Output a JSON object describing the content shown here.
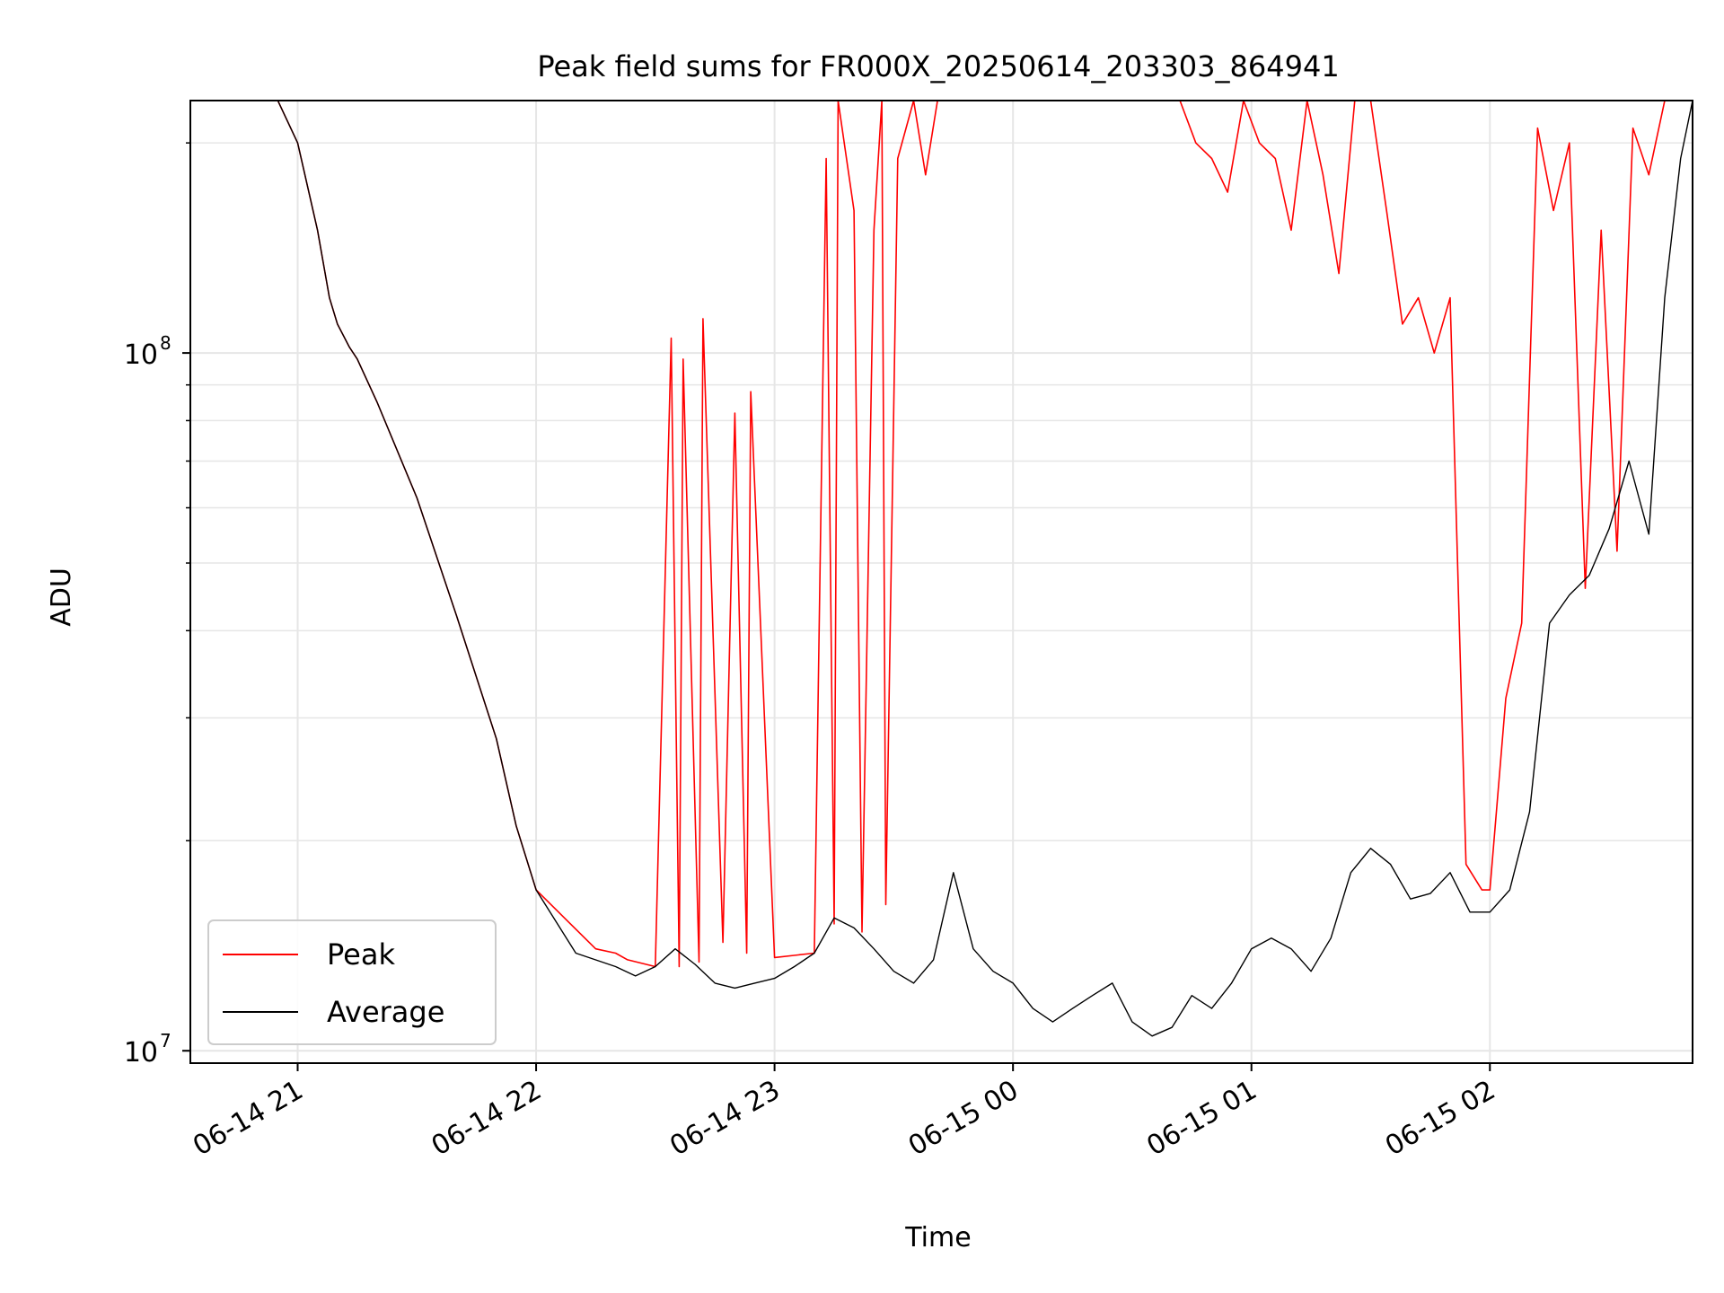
{
  "chart_data": {
    "type": "line",
    "title": "Peak field sums for FR000X_20250614_203303_864941",
    "xlabel": "Time",
    "ylabel": "ADU",
    "yscale": "log",
    "xlim": [
      "2025-06-14 20:33",
      "2025-06-15 02:51"
    ],
    "ylim": [
      9600000.0,
      230000000.0
    ],
    "grid": true,
    "legend": "lower-left",
    "x_ticks": [
      {
        "t": "2025-06-14 21:00",
        "label": "06-14 21"
      },
      {
        "t": "2025-06-14 22:00",
        "label": "06-14 22"
      },
      {
        "t": "2025-06-14 23:00",
        "label": "06-14 23"
      },
      {
        "t": "2025-06-15 00:00",
        "label": "06-15 00"
      },
      {
        "t": "2025-06-15 01:00",
        "label": "06-15 01"
      },
      {
        "t": "2025-06-15 02:00",
        "label": "06-15 02"
      }
    ],
    "y_ticks": [
      {
        "v": 10000000,
        "label": "10",
        "exp": "7"
      },
      {
        "v": 100000000,
        "label": "10",
        "exp": "8"
      }
    ],
    "y_minor_ticks": [
      20000000,
      30000000,
      40000000,
      50000000,
      60000000,
      70000000,
      80000000,
      90000000,
      200000000
    ],
    "series": [
      {
        "name": "Peak",
        "color": "#ff0000",
        "x": [
          "2025-06-14 20:33",
          "2025-06-14 20:45",
          "2025-06-14 20:55",
          "2025-06-14 21:00",
          "2025-06-14 21:05",
          "2025-06-14 21:08",
          "2025-06-14 21:10",
          "2025-06-14 21:13",
          "2025-06-14 21:15",
          "2025-06-14 21:20",
          "2025-06-14 21:30",
          "2025-06-14 21:40",
          "2025-06-14 21:50",
          "2025-06-14 21:55",
          "2025-06-14 22:00",
          "2025-06-14 22:15",
          "2025-06-14 22:20",
          "2025-06-14 22:23",
          "2025-06-14 22:30",
          "2025-06-14 22:34",
          "2025-06-14 22:36",
          "2025-06-14 22:37",
          "2025-06-14 22:41",
          "2025-06-14 22:42",
          "2025-06-14 22:47",
          "2025-06-14 22:50",
          "2025-06-14 22:53",
          "2025-06-14 22:54",
          "2025-06-14 23:00",
          "2025-06-14 23:10",
          "2025-06-14 23:13",
          "2025-06-14 23:15",
          "2025-06-14 23:16",
          "2025-06-14 23:20",
          "2025-06-14 23:22",
          "2025-06-14 23:25",
          "2025-06-14 23:27",
          "2025-06-14 23:28",
          "2025-06-14 23:31",
          "2025-06-14 23:35",
          "2025-06-14 23:38",
          "2025-06-14 23:41",
          "2025-06-14 23:45",
          "2025-06-14 23:50",
          "2025-06-14 23:54",
          "2025-06-14 23:58",
          "2025-06-15 00:02",
          "2025-06-15 00:06",
          "2025-06-15 00:10",
          "2025-06-15 00:14",
          "2025-06-15 00:18",
          "2025-06-15 00:22",
          "2025-06-15 00:26",
          "2025-06-15 00:30",
          "2025-06-15 00:34",
          "2025-06-15 00:38",
          "2025-06-15 00:42",
          "2025-06-15 00:46",
          "2025-06-15 00:50",
          "2025-06-15 00:54",
          "2025-06-15 00:58",
          "2025-06-15 01:02",
          "2025-06-15 01:06",
          "2025-06-15 01:10",
          "2025-06-15 01:14",
          "2025-06-15 01:18",
          "2025-06-15 01:22",
          "2025-06-15 01:26",
          "2025-06-15 01:30",
          "2025-06-15 01:34",
          "2025-06-15 01:38",
          "2025-06-15 01:42",
          "2025-06-15 01:46",
          "2025-06-15 01:50",
          "2025-06-15 01:54",
          "2025-06-15 01:58",
          "2025-06-15 02:00",
          "2025-06-15 02:04",
          "2025-06-15 02:08",
          "2025-06-15 02:12",
          "2025-06-15 02:16",
          "2025-06-15 02:20",
          "2025-06-15 02:24",
          "2025-06-15 02:28",
          "2025-06-15 02:32",
          "2025-06-15 02:36",
          "2025-06-15 02:40",
          "2025-06-15 02:44",
          "2025-06-15 02:47",
          "2025-06-15 02:51"
        ],
        "values": [
          230000000,
          230000000,
          230000000,
          200000000,
          150000000,
          120000000,
          110000000,
          102000000,
          98000000,
          85000000,
          62000000,
          42000000,
          28000000,
          21000000,
          17000000,
          14000000,
          13800000,
          13500000,
          13200000,
          105000000,
          13200000,
          98000000,
          13400000,
          112000000,
          14300000,
          82000000,
          13800000,
          88000000,
          13600000,
          13800000,
          190000000,
          15200000,
          230000000,
          160000000,
          14800000,
          150000000,
          230000000,
          16200000,
          190000000,
          230000000,
          180000000,
          230000000,
          230000000,
          230000000,
          230000000,
          230000000,
          230000000,
          230000000,
          230000000,
          230000000,
          230000000,
          230000000,
          230000000,
          230000000,
          230000000,
          230000000,
          230000000,
          200000000,
          190000000,
          170000000,
          230000000,
          200000000,
          190000000,
          150000000,
          230000000,
          180000000,
          130000000,
          230000000,
          230000000,
          160000000,
          110000000,
          120000000,
          100000000,
          120000000,
          18500000,
          17000000,
          17000000,
          32000000,
          41000000,
          210000000,
          160000000,
          200000000,
          46000000,
          150000000,
          52000000,
          210000000,
          180000000,
          230000000,
          230000000,
          230000000
        ]
      },
      {
        "name": "Average",
        "color": "#000000",
        "x": [
          "2025-06-14 20:33",
          "2025-06-14 20:45",
          "2025-06-14 20:55",
          "2025-06-14 21:00",
          "2025-06-14 21:05",
          "2025-06-14 21:08",
          "2025-06-14 21:10",
          "2025-06-14 21:13",
          "2025-06-14 21:15",
          "2025-06-14 21:20",
          "2025-06-14 21:30",
          "2025-06-14 21:40",
          "2025-06-14 21:50",
          "2025-06-14 21:55",
          "2025-06-14 22:00",
          "2025-06-14 22:10",
          "2025-06-14 22:20",
          "2025-06-14 22:25",
          "2025-06-14 22:30",
          "2025-06-14 22:35",
          "2025-06-14 22:40",
          "2025-06-14 22:45",
          "2025-06-14 22:50",
          "2025-06-14 22:55",
          "2025-06-14 23:00",
          "2025-06-14 23:05",
          "2025-06-14 23:10",
          "2025-06-14 23:15",
          "2025-06-14 23:20",
          "2025-06-14 23:25",
          "2025-06-14 23:30",
          "2025-06-14 23:35",
          "2025-06-14 23:40",
          "2025-06-14 23:45",
          "2025-06-14 23:50",
          "2025-06-14 23:55",
          "2025-06-15 00:00",
          "2025-06-15 00:05",
          "2025-06-15 00:10",
          "2025-06-15 00:15",
          "2025-06-15 00:20",
          "2025-06-15 00:25",
          "2025-06-15 00:30",
          "2025-06-15 00:35",
          "2025-06-15 00:40",
          "2025-06-15 00:45",
          "2025-06-15 00:50",
          "2025-06-15 00:55",
          "2025-06-15 01:00",
          "2025-06-15 01:05",
          "2025-06-15 01:10",
          "2025-06-15 01:15",
          "2025-06-15 01:20",
          "2025-06-15 01:25",
          "2025-06-15 01:30",
          "2025-06-15 01:35",
          "2025-06-15 01:40",
          "2025-06-15 01:45",
          "2025-06-15 01:50",
          "2025-06-15 01:55",
          "2025-06-15 02:00",
          "2025-06-15 02:05",
          "2025-06-15 02:10",
          "2025-06-15 02:15",
          "2025-06-15 02:20",
          "2025-06-15 02:25",
          "2025-06-15 02:30",
          "2025-06-15 02:35",
          "2025-06-15 02:40",
          "2025-06-15 02:44",
          "2025-06-15 02:48",
          "2025-06-15 02:51"
        ],
        "values": [
          230000000,
          230000000,
          230000000,
          200000000,
          150000000,
          120000000,
          110000000,
          102000000,
          98000000,
          85000000,
          62000000,
          42000000,
          28000000,
          21000000,
          17000000,
          13800000,
          13200000,
          12800000,
          13200000,
          14000000,
          13300000,
          12500000,
          12300000,
          12500000,
          12700000,
          13200000,
          13800000,
          15500000,
          15000000,
          14000000,
          13000000,
          12500000,
          13500000,
          18000000,
          14000000,
          13000000,
          12500000,
          11500000,
          11000000,
          11500000,
          12000000,
          12500000,
          11000000,
          10500000,
          10800000,
          12000000,
          11500000,
          12500000,
          14000000,
          14500000,
          14000000,
          13000000,
          14500000,
          18000000,
          19500000,
          18500000,
          16500000,
          16800000,
          18000000,
          15800000,
          15800000,
          17000000,
          22000000,
          41000000,
          45000000,
          48000000,
          56000000,
          70000000,
          55000000,
          120000000,
          190000000,
          230000000
        ]
      }
    ]
  }
}
